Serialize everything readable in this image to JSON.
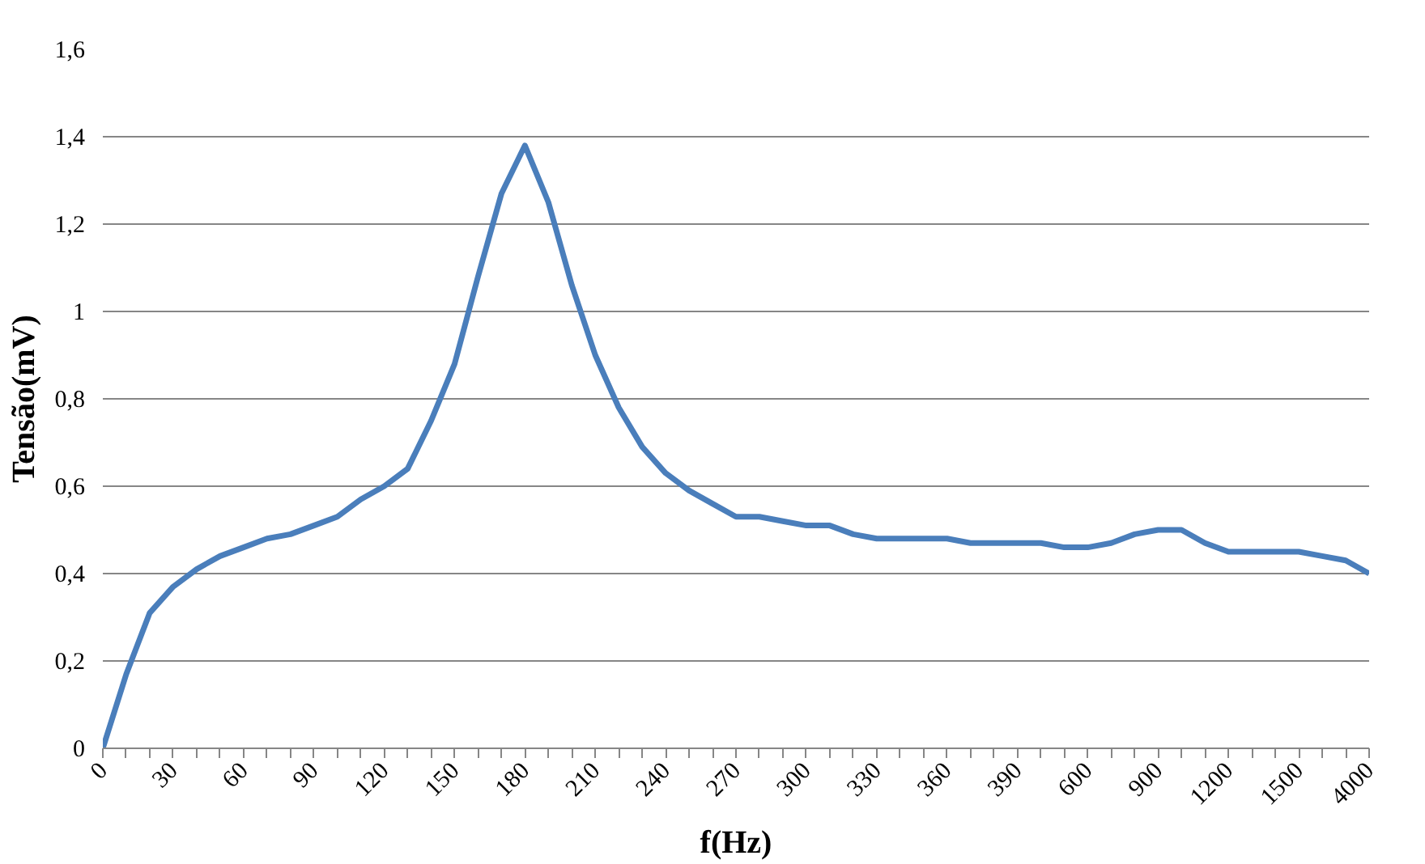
{
  "chart_data": {
    "type": "line",
    "xlabel": "f(Hz)",
    "ylabel": "Tensão(mV)",
    "categories": [
      "0",
      null,
      null,
      "30",
      null,
      null,
      "60",
      null,
      null,
      "90",
      null,
      null,
      "120",
      null,
      null,
      "150",
      null,
      null,
      "180",
      null,
      null,
      "210",
      null,
      null,
      "240",
      null,
      null,
      "270",
      null,
      null,
      "300",
      null,
      null,
      "330",
      null,
      null,
      "360",
      null,
      null,
      "390",
      null,
      null,
      "600",
      null,
      null,
      "900",
      null,
      null,
      "1200",
      null,
      null,
      "1500",
      null,
      null,
      "4000"
    ],
    "series": [
      {
        "color": "#4a7ebb",
        "values": [
          0,
          0.17,
          0.31,
          0.37,
          0.41,
          0.44,
          0.46,
          0.48,
          0.49,
          0.51,
          0.53,
          0.57,
          0.6,
          0.64,
          0.75,
          0.88,
          1.08,
          1.27,
          1.38,
          1.25,
          1.06,
          0.9,
          0.78,
          0.69,
          0.63,
          0.59,
          0.56,
          0.53,
          0.53,
          0.52,
          0.51,
          0.51,
          0.49,
          0.48,
          0.48,
          0.48,
          0.48,
          0.47,
          0.47,
          0.47,
          0.47,
          0.46,
          0.46,
          0.47,
          0.49,
          0.5,
          0.5,
          0.47,
          0.45,
          0.45,
          0.45,
          0.45,
          0.44,
          0.43,
          0.4
        ]
      }
    ],
    "ylim": [
      0,
      1.6
    ],
    "yticks": [
      {
        "value": 0,
        "label": "0"
      },
      {
        "value": 0.2,
        "label": "0,2"
      },
      {
        "value": 0.4,
        "label": "0,4"
      },
      {
        "value": 0.6,
        "label": "0,6"
      },
      {
        "value": 0.8,
        "label": "0,8"
      },
      {
        "value": 1,
        "label": "1"
      },
      {
        "value": 1.2,
        "label": "1,2"
      },
      {
        "value": 1.4,
        "label": "1,4"
      },
      {
        "value": 1.6,
        "label": "1,6"
      }
    ],
    "grid": "y",
    "marker": "none",
    "line_style": "solid"
  }
}
